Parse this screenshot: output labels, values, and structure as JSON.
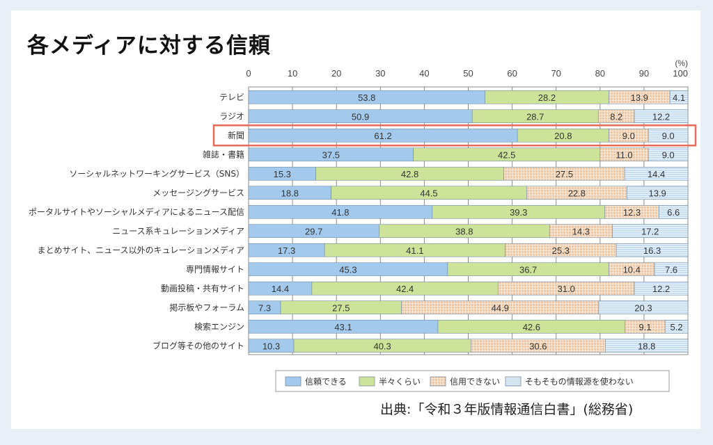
{
  "title": "各メディアに対する信頼",
  "source": "出典:「令和３年版情報通信白書」(総務省)",
  "chart_data": {
    "type": "bar",
    "orientation": "horizontal",
    "stacked": true,
    "title": "各メディアに対する信頼",
    "xlabel": "",
    "ylabel": "",
    "unit_label": "(%)",
    "xlim": [
      0,
      100
    ],
    "xticks": [
      0,
      10,
      20,
      30,
      40,
      50,
      60,
      70,
      80,
      90,
      100
    ],
    "grid": true,
    "legend_position": "bottom",
    "highlight_category": "新聞",
    "categories": [
      "テレビ",
      "ラジオ",
      "新聞",
      "雑誌・書籍",
      "ソーシャルネットワーキングサービス（SNS）",
      "メッセージングサービス",
      "ポータルサイトやソーシャルメディアによるニュース配信",
      "ニュース系キュレーションメディア",
      "まとめサイト、ニュース以外のキュレーションメディア",
      "専門情報サイト",
      "動画投稿・共有サイト",
      "掲示板やフォーラム",
      "検索エンジン",
      "ブログ等その他のサイト"
    ],
    "series": [
      {
        "name": "信頼できる",
        "color": "#a3caec",
        "pattern": "solid",
        "values": [
          53.8,
          50.9,
          61.2,
          37.5,
          15.3,
          18.8,
          41.8,
          29.7,
          17.3,
          45.3,
          14.4,
          7.3,
          43.1,
          10.3
        ]
      },
      {
        "name": "半々くらい",
        "color": "#cde39a",
        "pattern": "solid",
        "values": [
          28.2,
          28.7,
          20.8,
          42.5,
          42.8,
          44.5,
          39.3,
          38.8,
          41.1,
          36.7,
          42.4,
          27.5,
          42.6,
          40.3
        ]
      },
      {
        "name": "信用できない",
        "color": "#f2c9a3",
        "pattern": "grid",
        "values": [
          13.9,
          8.2,
          9.0,
          11.0,
          27.5,
          22.8,
          12.3,
          14.3,
          25.3,
          10.4,
          31.0,
          44.9,
          9.1,
          30.6
        ]
      },
      {
        "name": "そもそもの情報源を使わない",
        "color": "#cfe3f6",
        "pattern": "hlines",
        "values": [
          4.1,
          12.2,
          9.0,
          9.0,
          14.4,
          13.9,
          6.6,
          17.2,
          16.3,
          7.6,
          12.2,
          20.3,
          5.2,
          18.8
        ]
      }
    ]
  }
}
